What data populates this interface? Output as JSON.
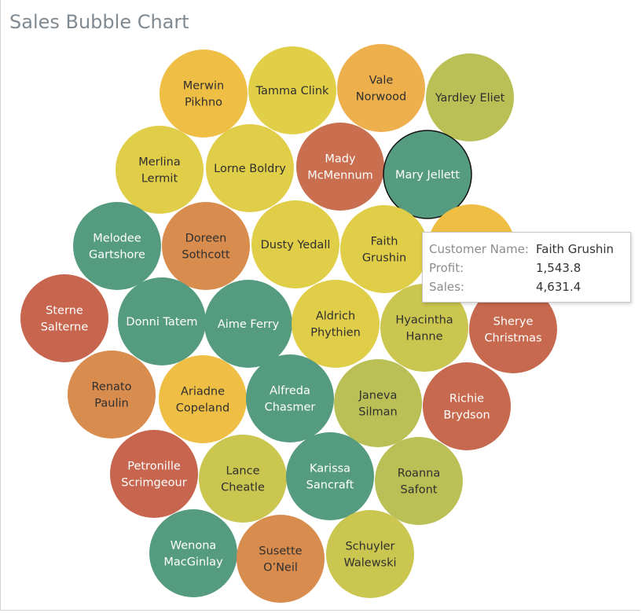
{
  "chart_data": {
    "type": "bubble",
    "title": "Sales Bubble Chart",
    "bubbles": [
      {
        "name": "Merwin\nPikhno",
        "color": "#efbf45"
      },
      {
        "name": "Tamma Clink",
        "color": "#e2cf48"
      },
      {
        "name": "Vale\nNorwood",
        "color": "#eeb04d"
      },
      {
        "name": "Yardley Eliet",
        "color": "#bac055"
      },
      {
        "name": "Merlina\nLermit",
        "color": "#e0cd48"
      },
      {
        "name": "Lorne Boldry",
        "color": "#e0cd48"
      },
      {
        "name": "Mady\nMcMennum",
        "color": "#c96f4f"
      },
      {
        "name": "Mary Jellett",
        "color": "#559b80"
      },
      {
        "name": "",
        "color": "#efbf45"
      },
      {
        "name": "Melodee\nGartshore",
        "color": "#559b80"
      },
      {
        "name": "Doreen\nSothcott",
        "color": "#d88c4d"
      },
      {
        "name": "Dusty Yedall",
        "color": "#e0cd48"
      },
      {
        "name": "Faith\nGrushin",
        "color": "#e0cd48"
      },
      {
        "name": "Sterne\nSalterne",
        "color": "#c7654e"
      },
      {
        "name": "Donni Tatem",
        "color": "#559b80"
      },
      {
        "name": "Aime Ferry",
        "color": "#559b80"
      },
      {
        "name": "Aldrich\nPhythien",
        "color": "#e0cd48"
      },
      {
        "name": "Hyacintha\nHanne",
        "color": "#cbc650"
      },
      {
        "name": "Sherye\nChristmas",
        "color": "#c7694e"
      },
      {
        "name": "Renato\nPaulin",
        "color": "#d88c4d"
      },
      {
        "name": "Ariadne\nCopeland",
        "color": "#efbf45"
      },
      {
        "name": "Alfreda\nChasmer",
        "color": "#559b80"
      },
      {
        "name": "Janeva\nSilman",
        "color": "#bac055"
      },
      {
        "name": "Richie\nBrydson",
        "color": "#c7694e"
      },
      {
        "name": "Petronille\nScrimgeour",
        "color": "#c7654e"
      },
      {
        "name": "Lance\nCheatle",
        "color": "#cbc650"
      },
      {
        "name": "Karissa\nSancraft",
        "color": "#559b80"
      },
      {
        "name": "Roanna\nSafont",
        "color": "#bac055"
      },
      {
        "name": "Wenona\nMacGinlay",
        "color": "#559b80"
      },
      {
        "name": "Susette\nO'Neil",
        "color": "#d88c4d"
      },
      {
        "name": "Schuyler\nWalewski",
        "color": "#cbc650"
      }
    ],
    "highlighted": "Mary Jellett",
    "tooltip": {
      "rows": [
        {
          "key": "Customer Name:",
          "value": "Faith Grushin"
        },
        {
          "key": "Profit:",
          "value": "1,543.8"
        },
        {
          "key": "Sales:",
          "value": "4,631.4"
        }
      ]
    }
  }
}
